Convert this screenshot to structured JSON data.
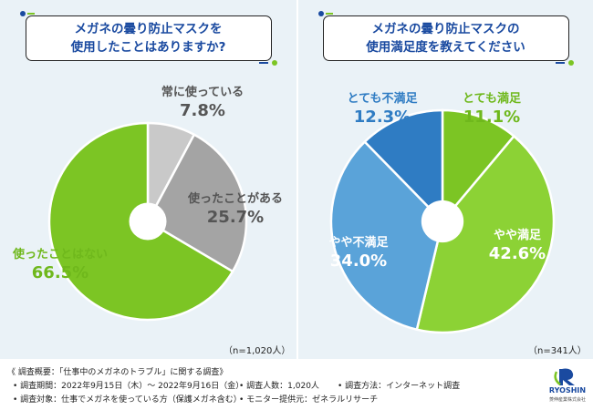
{
  "left": {
    "title_line1": "メガネの曇り防止マスクを",
    "title_line2": "使用したことはありますか?",
    "n_label": "（n=1,020人）"
  },
  "right": {
    "title_line1": "メガネの曇り防止マスクの",
    "title_line2": "使用満足度を教えてください",
    "n_label": "（n=341人）"
  },
  "footer": {
    "summary": "《 調査概要：「仕事中のメガネのトラブル」に関する調査》",
    "period": "• 調査期間：2022年9月15日（木）～ 2022年9月16日（金）",
    "count": "• 調査人数：1,020人",
    "method": "• 調査方法：インターネット調査",
    "target": "• 調査対象：仕事でメガネを使っている方（保護メガネ含む）",
    "provider": "• モニター提供元：ゼネラルリサーチ"
  },
  "logo": {
    "name": "RYOSHIN",
    "sub": "菱伸産業株式会社"
  },
  "colors": {
    "light_gray": "#c9c9c9",
    "mid_gray": "#a4a4a4",
    "green": "#7cc524",
    "light_green": "#8cd235",
    "light_blue": "#5aa3d9",
    "dark_blue": "#2f7cc3",
    "title_blue": "#1a4aa0"
  },
  "chart_data": [
    {
      "type": "pie",
      "labels": [
        "常に使っている",
        "使ったことがある",
        "使ったことはない"
      ],
      "values": [
        7.8,
        25.7,
        66.5
      ],
      "value_labels": [
        "7.8%",
        "25.7%",
        "66.5%"
      ],
      "colors": [
        "#c9c9c9",
        "#a4a4a4",
        "#7cc524"
      ],
      "label_colors": [
        "#555555",
        "#555555",
        "#6fb81c"
      ]
    },
    {
      "type": "pie",
      "labels": [
        "とても満足",
        "やや満足",
        "やや不満足",
        "とても不満足"
      ],
      "values": [
        11.1,
        42.6,
        34.0,
        12.3
      ],
      "value_labels": [
        "11.1%",
        "42.6%",
        "34.0%",
        "12.3%"
      ],
      "colors": [
        "#7cc524",
        "#8cd235",
        "#5aa3d9",
        "#2f7cc3"
      ],
      "label_colors": [
        "#6fb81c",
        "#ffffff",
        "#ffffff",
        "#2f7cc3"
      ]
    }
  ]
}
